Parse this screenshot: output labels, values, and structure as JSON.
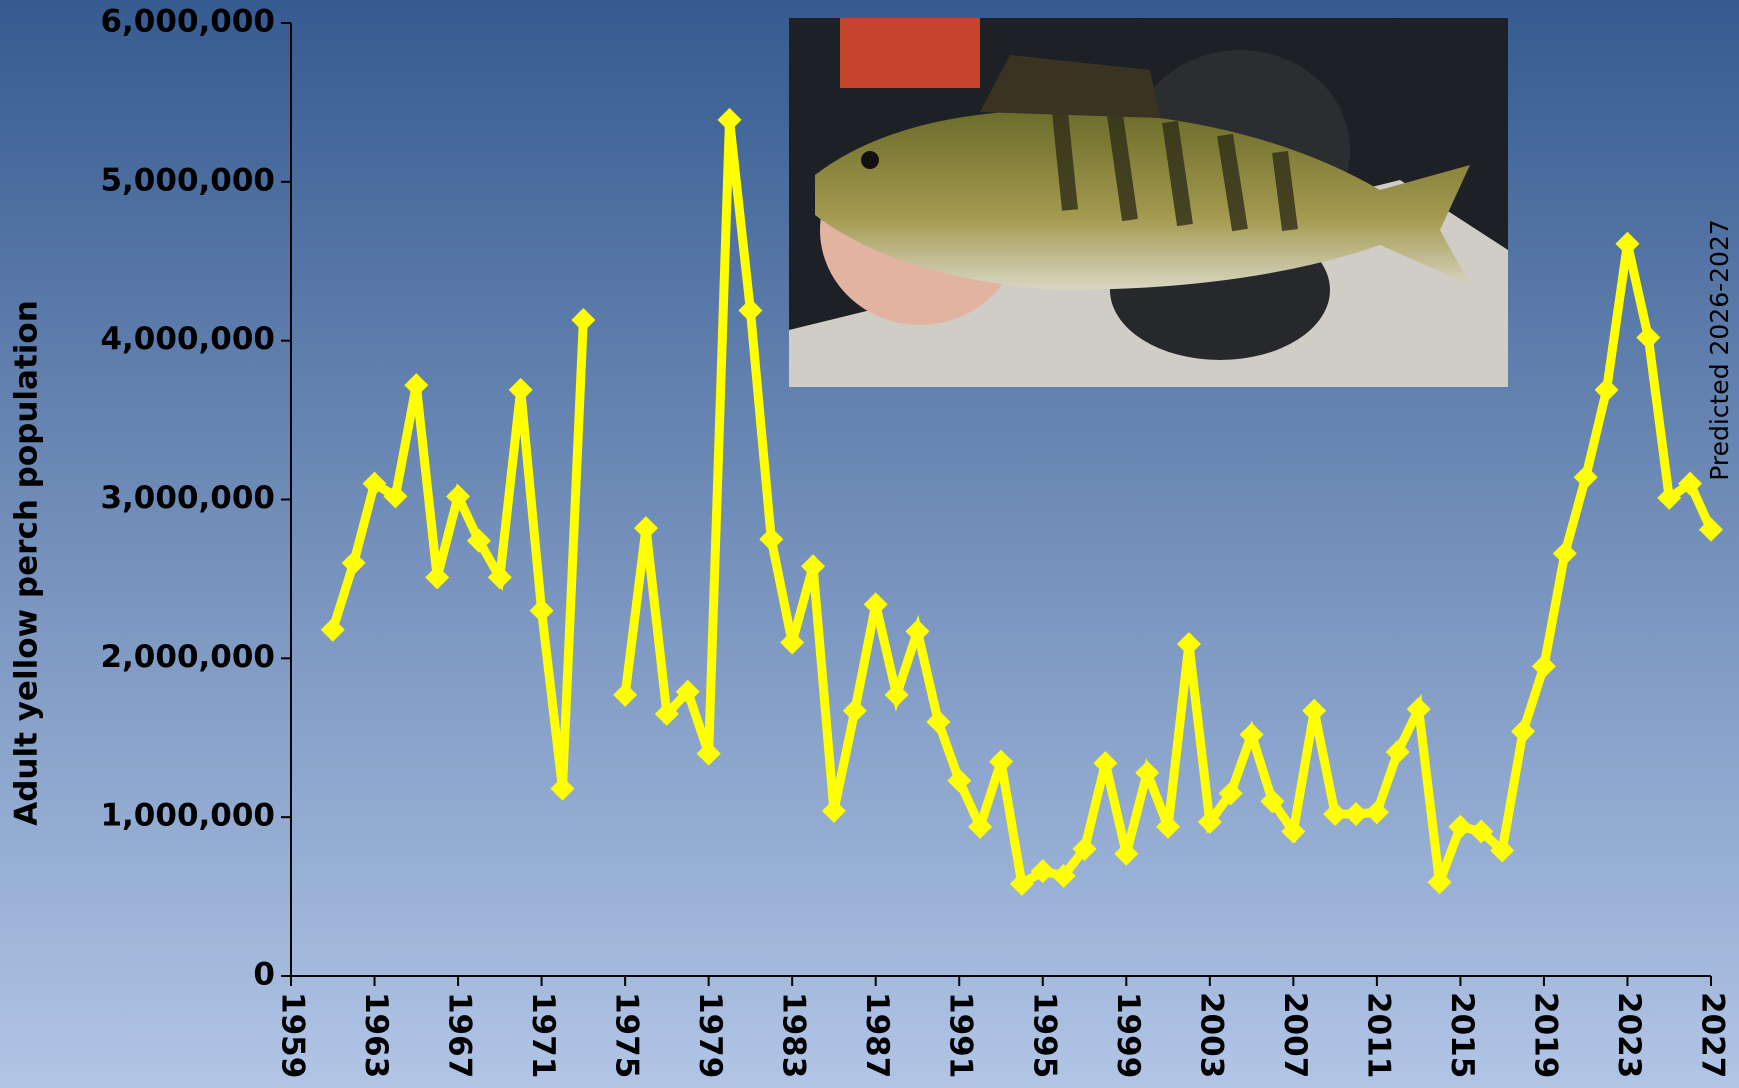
{
  "chart_data": {
    "type": "line",
    "ylabel": "Adult yellow perch population",
    "annotation": "Predicted 2026-2027",
    "color": "#ffff00",
    "x": [
      1961,
      1962,
      1963,
      1964,
      1965,
      1966,
      1967,
      1968,
      1969,
      1970,
      1971,
      1972,
      1973,
      1974,
      1975,
      1976,
      1977,
      1978,
      1979,
      1980,
      1981,
      1982,
      1983,
      1984,
      1985,
      1986,
      1987,
      1988,
      1989,
      1990,
      1991,
      1992,
      1993,
      1994,
      1995,
      1996,
      1997,
      1998,
      1999,
      2000,
      2001,
      2002,
      2003,
      2004,
      2005,
      2006,
      2007,
      2008,
      2009,
      2010,
      2011,
      2012,
      2013,
      2014,
      2015,
      2016,
      2017,
      2018,
      2019,
      2020,
      2021,
      2022,
      2023,
      2024,
      2025,
      2026,
      2027
    ],
    "values": [
      2180000,
      2600000,
      3100000,
      3020000,
      3720000,
      2510000,
      3020000,
      2740000,
      2510000,
      3690000,
      2300000,
      1180000,
      4130000,
      null,
      1770000,
      2820000,
      1650000,
      1790000,
      1400000,
      5390000,
      4190000,
      2750000,
      2100000,
      2580000,
      1040000,
      1670000,
      2340000,
      1770000,
      2170000,
      1600000,
      1230000,
      940000,
      1350000,
      580000,
      660000,
      630000,
      800000,
      1340000,
      770000,
      1280000,
      940000,
      2090000,
      970000,
      1150000,
      1520000,
      1100000,
      910000,
      1670000,
      1020000,
      1020000,
      1030000,
      1410000,
      1680000,
      590000,
      940000,
      910000,
      790000,
      1540000,
      1950000,
      2660000,
      3140000,
      3690000,
      4610000,
      4020000,
      3010000,
      3100000,
      2810000
    ],
    "xlim": [
      1959,
      2027
    ],
    "xticks": [
      1959,
      1963,
      1967,
      1971,
      1975,
      1979,
      1983,
      1987,
      1991,
      1995,
      1999,
      2003,
      2007,
      2011,
      2015,
      2019,
      2023,
      2027
    ],
    "ylim": [
      0,
      6000000
    ],
    "yticks": [
      0,
      {
        "value": 1000000,
        "label": "1,000,000"
      },
      {
        "value": 2000000,
        "label": "2,000,000"
      },
      {
        "value": 3000000,
        "label": "3,000,000"
      },
      {
        "value": 4000000,
        "label": "4,000,000"
      },
      {
        "value": 5000000,
        "label": "5,000,000"
      },
      {
        "value": 6000000,
        "label": "6,000,000"
      }
    ],
    "grid": false
  }
}
